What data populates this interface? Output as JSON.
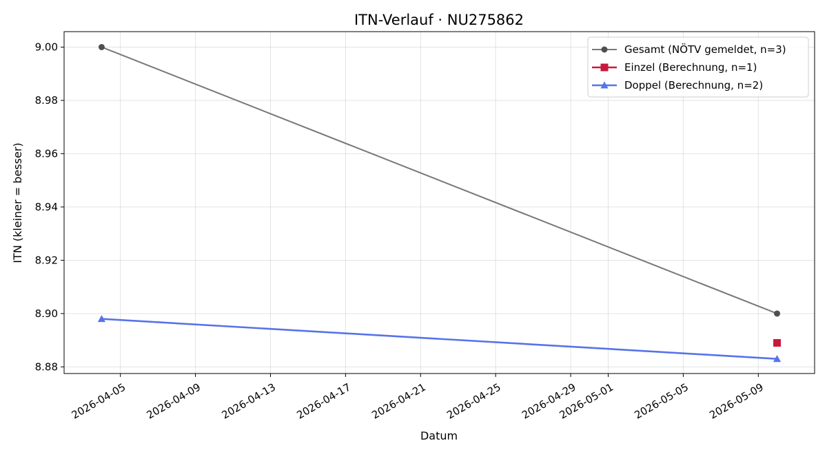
{
  "chart_data": {
    "type": "line",
    "title": "ITN-Verlauf · NU275862",
    "xlabel": "Datum",
    "ylabel": "ITN  (kleiner = besser)",
    "x_ticks": [
      "2026-04-05",
      "2026-04-09",
      "2026-04-13",
      "2026-04-17",
      "2026-04-21",
      "2026-04-25",
      "2026-04-29",
      "2026-05-01",
      "2026-05-05",
      "2026-05-09"
    ],
    "y_ticks": [
      "8.88",
      "8.90",
      "8.92",
      "8.94",
      "8.96",
      "8.98",
      "9.00"
    ],
    "xlim": [
      "2026-04-02",
      "2026-05-12"
    ],
    "ylim": [
      8.8775,
      9.0058
    ],
    "grid": true,
    "legend_position": "top-right",
    "series": [
      {
        "name": "Gesamt (NÖTV gemeldet, n=3)",
        "color": "#777777",
        "marker_color": "#4f4f4f",
        "marker": "circle",
        "line": true,
        "points": [
          {
            "x": "2026-04-04",
            "y": 9.0
          },
          {
            "x": "2026-05-10",
            "y": 8.9
          }
        ]
      },
      {
        "name": "Einzel (Berechnung, n=1)",
        "color": "#c8193c",
        "marker_color": "#c8193c",
        "marker": "square",
        "line": true,
        "points": [
          {
            "x": "2026-05-10",
            "y": 8.889
          }
        ]
      },
      {
        "name": "Doppel (Berechnung, n=2)",
        "color": "#5673e8",
        "marker_color": "#5673e8",
        "marker": "triangle",
        "line": true,
        "points": [
          {
            "x": "2026-04-04",
            "y": 8.898
          },
          {
            "x": "2026-05-10",
            "y": 8.883
          }
        ]
      }
    ]
  }
}
